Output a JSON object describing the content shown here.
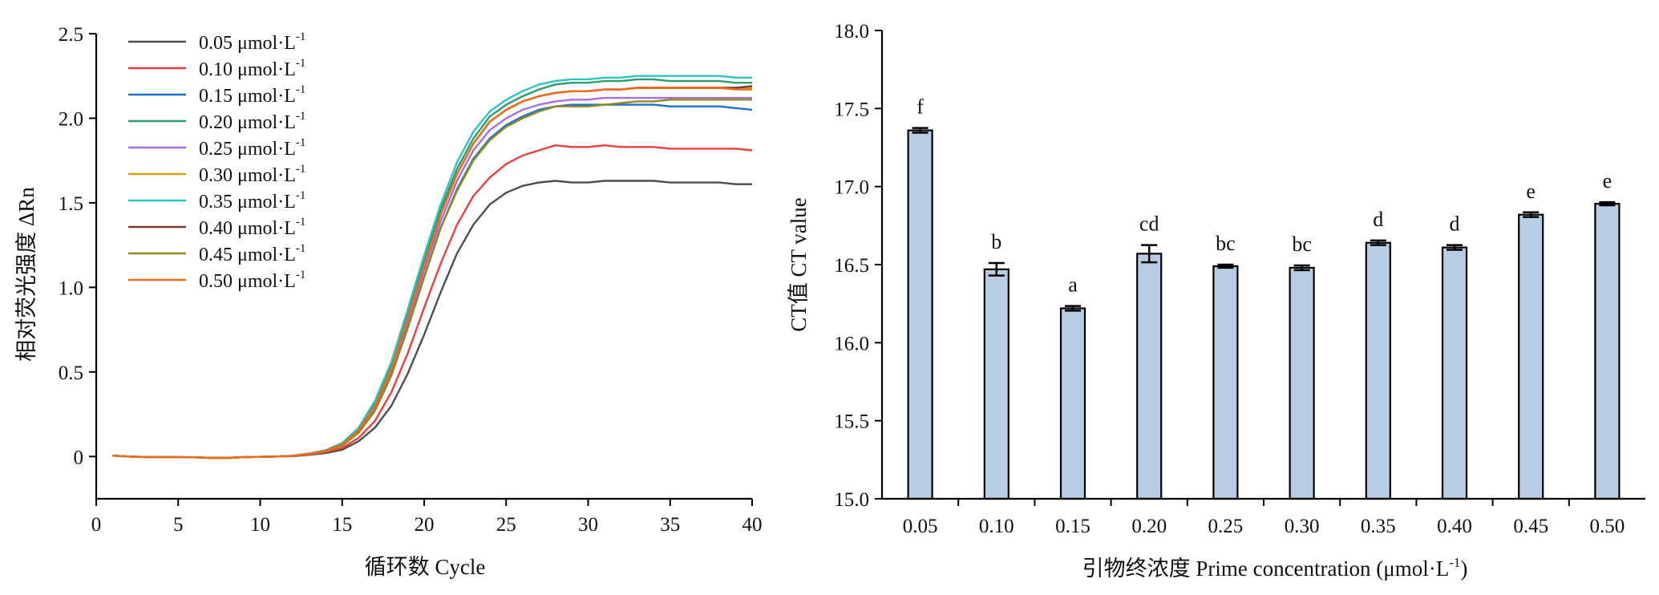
{
  "chart_data": [
    {
      "type": "line",
      "xlabel": "循环数 Cycle",
      "ylabel": "相对荧光强度 ΔRn",
      "xlim": [
        0,
        40
      ],
      "ylim": [
        -0.25,
        2.5
      ],
      "xticks": [
        0,
        5,
        10,
        15,
        20,
        25,
        30,
        35,
        40
      ],
      "yticks": [
        0,
        0.5,
        1.0,
        1.5,
        2.0,
        2.5
      ],
      "ytick_labels": [
        "0",
        "0.5",
        "1.0",
        "1.5",
        "2.0",
        "2.5"
      ],
      "legend_position": "top-left",
      "x": [
        1,
        2,
        3,
        4,
        5,
        6,
        7,
        8,
        9,
        10,
        11,
        12,
        13,
        14,
        15,
        16,
        17,
        18,
        19,
        20,
        21,
        22,
        23,
        24,
        25,
        26,
        27,
        28,
        29,
        30,
        31,
        32,
        33,
        34,
        35,
        36,
        37,
        38,
        39,
        40
      ],
      "series": [
        {
          "name": "0.05 μmol·L",
          "sup": "-1",
          "color": "#4d4d4d",
          "values": [
            0.005,
            0.0,
            -0.003,
            -0.003,
            -0.004,
            -0.005,
            -0.008,
            -0.008,
            -0.004,
            -0.002,
            0.0,
            0.002,
            0.01,
            0.02,
            0.04,
            0.09,
            0.17,
            0.3,
            0.49,
            0.72,
            0.97,
            1.2,
            1.37,
            1.49,
            1.56,
            1.6,
            1.62,
            1.63,
            1.62,
            1.62,
            1.63,
            1.63,
            1.63,
            1.63,
            1.62,
            1.62,
            1.62,
            1.62,
            1.61,
            1.61
          ]
        },
        {
          "name": "0.10 μmol·L",
          "sup": "-1",
          "color": "#e8403e",
          "values": [
            0.005,
            0.0,
            -0.003,
            -0.003,
            -0.004,
            -0.005,
            -0.008,
            -0.008,
            -0.004,
            -0.002,
            0.0,
            0.003,
            0.012,
            0.025,
            0.05,
            0.11,
            0.21,
            0.38,
            0.61,
            0.88,
            1.14,
            1.37,
            1.54,
            1.65,
            1.73,
            1.78,
            1.81,
            1.84,
            1.83,
            1.83,
            1.84,
            1.83,
            1.83,
            1.83,
            1.82,
            1.82,
            1.82,
            1.82,
            1.82,
            1.81
          ]
        },
        {
          "name": "0.15 μmol·L",
          "sup": "-1",
          "color": "#1f6fd0",
          "values": [
            0.005,
            0.0,
            -0.003,
            -0.003,
            -0.004,
            -0.005,
            -0.008,
            -0.008,
            -0.004,
            -0.002,
            0.0,
            0.004,
            0.015,
            0.03,
            0.065,
            0.14,
            0.27,
            0.48,
            0.76,
            1.06,
            1.35,
            1.58,
            1.76,
            1.88,
            1.96,
            2.01,
            2.05,
            2.07,
            2.08,
            2.08,
            2.08,
            2.08,
            2.08,
            2.08,
            2.07,
            2.07,
            2.07,
            2.07,
            2.06,
            2.05
          ]
        },
        {
          "name": "0.20 μmol·L",
          "sup": "-1",
          "color": "#2a9d6a",
          "values": [
            0.005,
            0.0,
            -0.003,
            -0.003,
            -0.004,
            -0.005,
            -0.008,
            -0.008,
            -0.004,
            -0.002,
            0.0,
            0.004,
            0.016,
            0.035,
            0.075,
            0.16,
            0.31,
            0.54,
            0.84,
            1.16,
            1.46,
            1.7,
            1.88,
            2.01,
            2.08,
            2.13,
            2.17,
            2.2,
            2.21,
            2.21,
            2.22,
            2.22,
            2.23,
            2.23,
            2.22,
            2.22,
            2.22,
            2.22,
            2.21,
            2.21
          ]
        },
        {
          "name": "0.25 μmol·L",
          "sup": "-1",
          "color": "#a66ee0",
          "values": [
            0.005,
            0.0,
            -0.003,
            -0.003,
            -0.004,
            -0.005,
            -0.008,
            -0.008,
            -0.004,
            -0.002,
            0.0,
            0.004,
            0.015,
            0.032,
            0.068,
            0.145,
            0.28,
            0.5,
            0.79,
            1.1,
            1.39,
            1.63,
            1.81,
            1.93,
            2.0,
            2.05,
            2.08,
            2.1,
            2.11,
            2.11,
            2.12,
            2.12,
            2.12,
            2.12,
            2.12,
            2.12,
            2.12,
            2.12,
            2.12,
            2.12
          ]
        },
        {
          "name": "0.30 μmol·L",
          "sup": "-1",
          "color": "#d4a017",
          "values": [
            0.005,
            0.0,
            -0.003,
            -0.003,
            -0.004,
            -0.005,
            -0.008,
            -0.008,
            -0.004,
            -0.002,
            0.0,
            0.004,
            0.016,
            0.034,
            0.072,
            0.155,
            0.3,
            0.52,
            0.82,
            1.13,
            1.43,
            1.67,
            1.85,
            1.98,
            2.05,
            2.1,
            2.13,
            2.15,
            2.16,
            2.16,
            2.17,
            2.17,
            2.18,
            2.18,
            2.18,
            2.18,
            2.18,
            2.18,
            2.18,
            2.18
          ]
        },
        {
          "name": "0.35 μmol·L",
          "sup": "-1",
          "color": "#2ec4c0",
          "values": [
            0.005,
            0.0,
            -0.003,
            -0.003,
            -0.004,
            -0.005,
            -0.008,
            -0.008,
            -0.004,
            -0.002,
            0.0,
            0.005,
            0.018,
            0.038,
            0.08,
            0.17,
            0.33,
            0.56,
            0.87,
            1.19,
            1.49,
            1.74,
            1.92,
            2.04,
            2.11,
            2.16,
            2.2,
            2.22,
            2.23,
            2.23,
            2.24,
            2.24,
            2.25,
            2.25,
            2.25,
            2.25,
            2.25,
            2.25,
            2.24,
            2.24
          ]
        },
        {
          "name": "0.40 μmol·L",
          "sup": "-1",
          "color": "#7a3b36",
          "values": [
            0.005,
            0.0,
            -0.003,
            -0.003,
            -0.004,
            -0.005,
            -0.008,
            -0.008,
            -0.004,
            -0.002,
            0.0,
            0.004,
            0.016,
            0.034,
            0.072,
            0.155,
            0.3,
            0.52,
            0.82,
            1.13,
            1.43,
            1.67,
            1.85,
            1.98,
            2.05,
            2.1,
            2.13,
            2.15,
            2.16,
            2.16,
            2.17,
            2.17,
            2.18,
            2.18,
            2.18,
            2.18,
            2.18,
            2.18,
            2.18,
            2.19
          ]
        },
        {
          "name": "0.45 μmol·L",
          "sup": "-1",
          "color": "#8c8c1a",
          "values": [
            0.005,
            0.0,
            -0.003,
            -0.003,
            -0.004,
            -0.005,
            -0.008,
            -0.008,
            -0.004,
            -0.002,
            0.0,
            0.004,
            0.014,
            0.03,
            0.064,
            0.14,
            0.27,
            0.48,
            0.76,
            1.06,
            1.35,
            1.57,
            1.75,
            1.87,
            1.95,
            2.0,
            2.04,
            2.07,
            2.07,
            2.07,
            2.08,
            2.09,
            2.1,
            2.1,
            2.11,
            2.11,
            2.11,
            2.11,
            2.11,
            2.11
          ]
        },
        {
          "name": "0.50 μmol·L",
          "sup": "-1",
          "color": "#f26b1d",
          "values": [
            0.005,
            0.0,
            -0.003,
            -0.003,
            -0.004,
            -0.005,
            -0.008,
            -0.008,
            -0.004,
            -0.002,
            0.0,
            0.004,
            0.016,
            0.034,
            0.072,
            0.155,
            0.3,
            0.52,
            0.82,
            1.13,
            1.43,
            1.67,
            1.85,
            1.98,
            2.05,
            2.1,
            2.13,
            2.15,
            2.16,
            2.16,
            2.17,
            2.17,
            2.18,
            2.18,
            2.18,
            2.18,
            2.18,
            2.18,
            2.17,
            2.17
          ]
        }
      ]
    },
    {
      "type": "bar",
      "xlabel": "引物终浓度 Prime concentration (μmol·L",
      "xlabel_sup": "-1",
      "xlabel_end": ")",
      "ylabel": "CT值 CT value",
      "ylim": [
        15.0,
        18.0
      ],
      "yticks": [
        15.0,
        15.5,
        16.0,
        16.5,
        17.0,
        17.5,
        18.0
      ],
      "ytick_labels": [
        "15.0",
        "15.5",
        "16.0",
        "16.5",
        "17.0",
        "17.5",
        "18.0"
      ],
      "categories": [
        "0.05",
        "0.10",
        "0.15",
        "0.20",
        "0.25",
        "0.30",
        "0.35",
        "0.40",
        "0.45",
        "0.50"
      ],
      "values": [
        17.36,
        16.47,
        16.22,
        16.57,
        16.49,
        16.48,
        16.64,
        16.61,
        16.82,
        16.89
      ],
      "errors": [
        0.015,
        0.04,
        0.015,
        0.055,
        0.01,
        0.015,
        0.015,
        0.015,
        0.015,
        0.01
      ],
      "significance": [
        "f",
        "b",
        "a",
        "cd",
        "bc",
        "bc",
        "d",
        "d",
        "e",
        "e"
      ],
      "bar_color": "#b8cce4",
      "edge_color": "#000000"
    }
  ]
}
